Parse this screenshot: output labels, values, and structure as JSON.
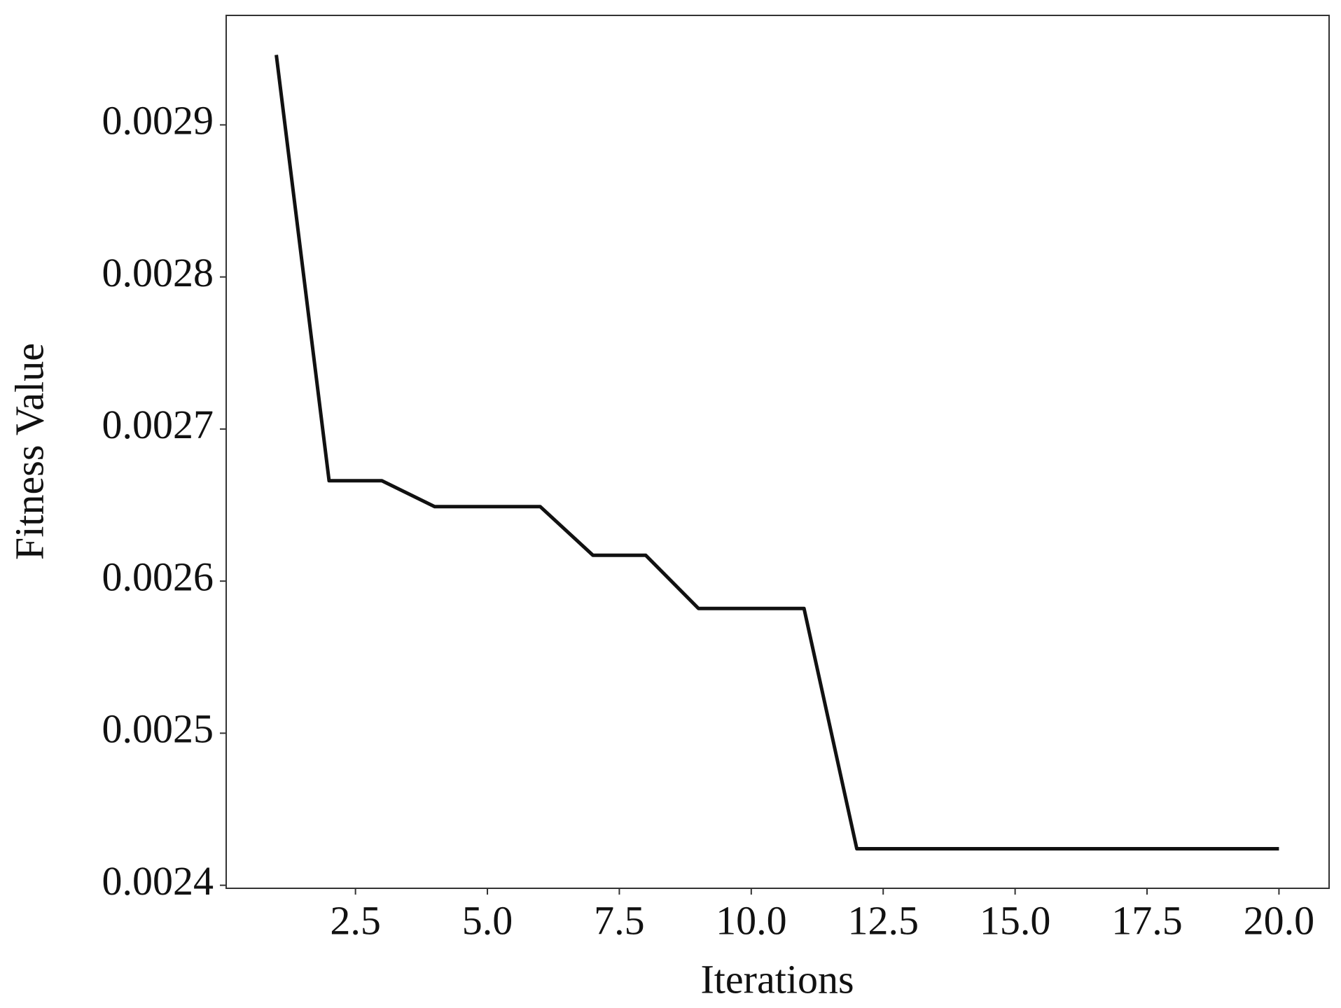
{
  "chart_data": {
    "type": "line",
    "x_label": "Iterations",
    "y_label": "Fitness Value",
    "x": [
      1,
      2,
      3,
      4,
      5,
      6,
      7,
      8,
      9,
      10,
      11,
      12,
      13,
      14,
      15,
      16,
      17,
      18,
      19,
      20
    ],
    "series": [
      {
        "color": "#111111",
        "values": [
          0.002946,
          0.002666,
          0.002666,
          0.002649,
          0.002649,
          0.002649,
          0.002617,
          0.002617,
          0.002582,
          0.002582,
          0.002582,
          0.002424,
          0.002424,
          0.002424,
          0.002424,
          0.002424,
          0.002424,
          0.002424,
          0.002424,
          0.002424
        ]
      }
    ],
    "xlim": [
      0.05,
      20.95
    ],
    "xticks": [
      2.5,
      {
        "value": 5,
        "label": "5.0"
      },
      7.5,
      {
        "value": 10,
        "label": "10.0"
      },
      12.5,
      {
        "value": 15,
        "label": "15.0"
      },
      17.5,
      {
        "value": 20,
        "label": "20.0"
      }
    ],
    "ylim": [
      0.002398,
      0.002972
    ],
    "yticks": [
      0.0024,
      0.0025,
      0.0026,
      0.0027,
      0.0028,
      0.0029
    ],
    "grid": false
  }
}
